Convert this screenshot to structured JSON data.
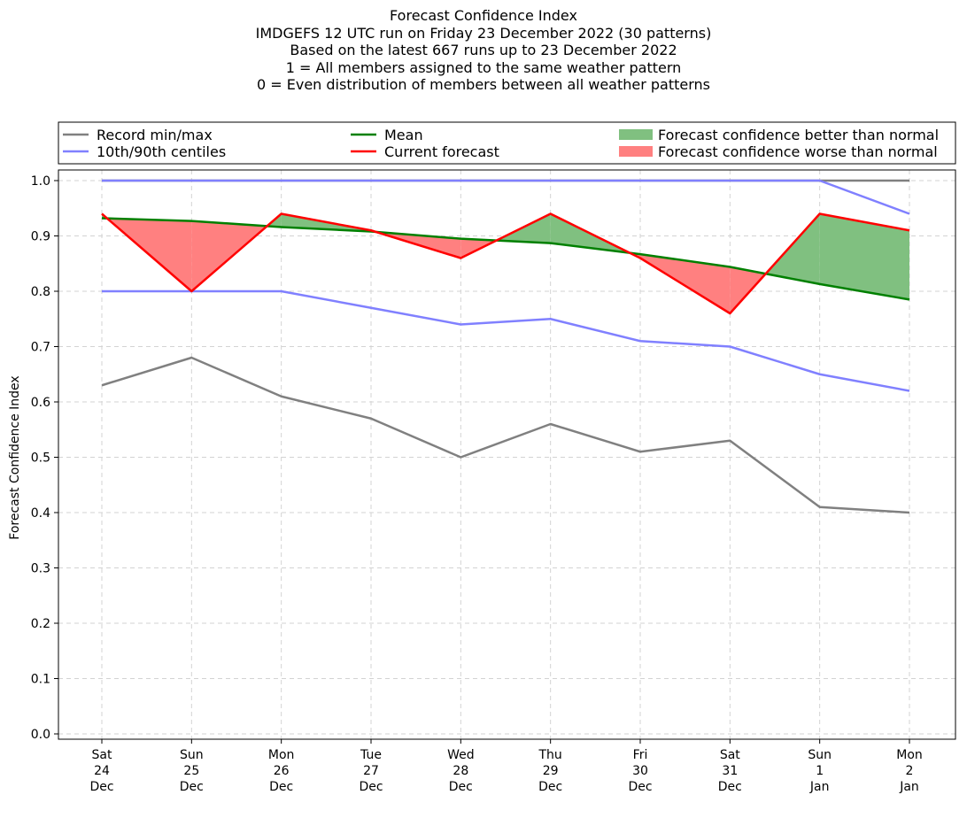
{
  "chart_data": {
    "type": "line",
    "title_lines": [
      "Forecast Confidence Index",
      "IMDGEFS 12 UTC run on Friday 23 December 2022 (30 patterns)",
      "Based on the latest 667 runs up to 23 December 2022",
      "1 = All members assigned to the same weather pattern",
      "0 = Even distribution of members between all weather patterns"
    ],
    "ylabel": "Forecast Confidence Index",
    "xlabel": "",
    "ylim": [
      0,
      1.0
    ],
    "yticks": [
      0.0,
      0.1,
      0.2,
      0.3,
      0.4,
      0.5,
      0.6,
      0.7,
      0.8,
      0.9,
      1.0
    ],
    "grid": true,
    "categories": [
      [
        "Sat",
        "24",
        "Dec"
      ],
      [
        "Sun",
        "25",
        "Dec"
      ],
      [
        "Mon",
        "26",
        "Dec"
      ],
      [
        "Tue",
        "27",
        "Dec"
      ],
      [
        "Wed",
        "28",
        "Dec"
      ],
      [
        "Thu",
        "29",
        "Dec"
      ],
      [
        "Fri",
        "30",
        "Dec"
      ],
      [
        "Sat",
        "31",
        "Dec"
      ],
      [
        "Sun",
        "1",
        "Jan"
      ],
      [
        "Mon",
        "2",
        "Jan"
      ]
    ],
    "legend": {
      "placement": "top",
      "entries": [
        {
          "label": "Record min/max",
          "kind": "line",
          "color": "#808080"
        },
        {
          "label": "10th/90th centiles",
          "kind": "line",
          "color": "#8080ff"
        },
        {
          "label": "Mean",
          "kind": "line",
          "color": "#008000"
        },
        {
          "label": "Current forecast",
          "kind": "line",
          "color": "#ff0000"
        },
        {
          "label": "Forecast confidence better than normal",
          "kind": "patch",
          "color": "#80c080"
        },
        {
          "label": "Forecast confidence worse than normal",
          "kind": "patch",
          "color": "#ff8080"
        }
      ]
    },
    "series": [
      {
        "key": "record_min",
        "color": "#808080",
        "values": [
          0.63,
          0.68,
          0.61,
          0.57,
          0.5,
          0.56,
          0.51,
          0.53,
          0.41,
          0.4
        ]
      },
      {
        "key": "record_max",
        "color": "#808080",
        "values": [
          1.0,
          1.0,
          1.0,
          1.0,
          1.0,
          1.0,
          1.0,
          1.0,
          1.0,
          1.0
        ]
      },
      {
        "key": "p10",
        "color": "#8080ff",
        "values": [
          0.8,
          0.8,
          0.8,
          0.77,
          0.74,
          0.75,
          0.71,
          0.7,
          0.65,
          0.62
        ]
      },
      {
        "key": "p90",
        "color": "#8080ff",
        "values": [
          1.0,
          1.0,
          1.0,
          1.0,
          1.0,
          1.0,
          1.0,
          1.0,
          1.0,
          0.94
        ]
      },
      {
        "key": "mean",
        "color": "#008000",
        "values": [
          0.932,
          0.927,
          0.916,
          0.908,
          0.895,
          0.887,
          0.867,
          0.844,
          0.813,
          0.785
        ]
      },
      {
        "key": "current",
        "color": "#ff0000",
        "values": [
          0.94,
          0.8,
          0.94,
          0.91,
          0.86,
          0.94,
          0.86,
          0.76,
          0.94,
          0.91
        ]
      }
    ]
  }
}
